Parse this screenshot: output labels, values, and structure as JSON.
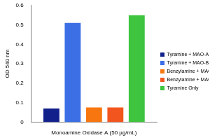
{
  "chart_data": {
    "type": "bar",
    "categories": [
      "Monoamine Oxidase A (50 µg/mL)"
    ],
    "y_label": "OD 540 nm",
    "series": [
      {
        "name": "Tyramine + MAO-A Inhibitor",
        "color": "#12208c",
        "values": [
          0.07
        ]
      },
      {
        "name": "Tyramine + MAO-B Inhibitor",
        "color": "#3c6fe6",
        "values": [
          0.51
        ]
      },
      {
        "name": "Benzylamine + MAO-A Inhibitor",
        "color": "#f7760f",
        "values": [
          0.075
        ]
      },
      {
        "name": "Benzylamine + MAO-B Inhibitor",
        "color": "#f2561e",
        "values": [
          0.075
        ]
      },
      {
        "name": "Tyramine Only",
        "color": "#3fc43f",
        "values": [
          0.55
        ]
      }
    ],
    "ylim": [
      0,
      0.6
    ],
    "yticks": [
      0,
      0.1,
      0.2,
      0.3,
      0.4,
      0.5,
      0.6
    ],
    "grid": false,
    "legend": "right"
  }
}
